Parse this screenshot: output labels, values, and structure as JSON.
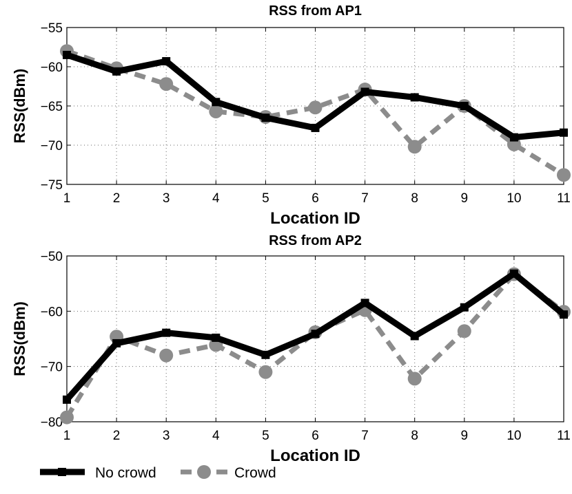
{
  "chart_data": [
    {
      "type": "line",
      "title": "RSS from AP1",
      "xlabel": "Location ID",
      "ylabel": "RSS(dBm)",
      "x": [
        1,
        2,
        3,
        4,
        5,
        6,
        7,
        8,
        9,
        10,
        11
      ],
      "xlim": [
        1,
        11
      ],
      "ylim": [
        -75,
        -55
      ],
      "yticks": [
        -55,
        -60,
        -65,
        -70,
        -75
      ],
      "grid": true,
      "series": [
        {
          "name": "No crowd",
          "values": [
            -58.5,
            -60.6,
            -59.3,
            -64.5,
            -66.5,
            -67.8,
            -63.2,
            -63.9,
            -65.0,
            -69.0,
            -68.4
          ]
        },
        {
          "name": "Crowd",
          "values": [
            -58.0,
            -60.2,
            -62.2,
            -65.7,
            -66.4,
            -65.2,
            -62.9,
            -70.2,
            -65.0,
            -69.9,
            -73.8
          ]
        }
      ]
    },
    {
      "type": "line",
      "title": "RSS from AP2",
      "xlabel": "Location ID",
      "ylabel": "RSS(dBm)",
      "x": [
        1,
        2,
        3,
        4,
        5,
        6,
        7,
        8,
        9,
        10,
        11
      ],
      "xlim": [
        1,
        11
      ],
      "ylim": [
        -80,
        -50
      ],
      "yticks": [
        -50,
        -60,
        -70,
        -80
      ],
      "grid": true,
      "series": [
        {
          "name": "No crowd",
          "values": [
            -76.0,
            -65.8,
            -63.9,
            -64.8,
            -67.9,
            -64.1,
            -58.5,
            -64.5,
            -59.3,
            -53.2,
            -60.6
          ]
        },
        {
          "name": "Crowd",
          "values": [
            -79.2,
            -64.6,
            -68.0,
            -66.1,
            -71.0,
            -63.8,
            -59.8,
            -72.2,
            -63.6,
            -53.3,
            -60.1
          ]
        }
      ]
    }
  ],
  "legend": {
    "items": [
      {
        "label": "No crowd",
        "color": "#000000",
        "style": "solid",
        "marker": "square"
      },
      {
        "label": "Crowd",
        "color": "#8c8c8c",
        "style": "dashed",
        "marker": "circle"
      }
    ]
  }
}
